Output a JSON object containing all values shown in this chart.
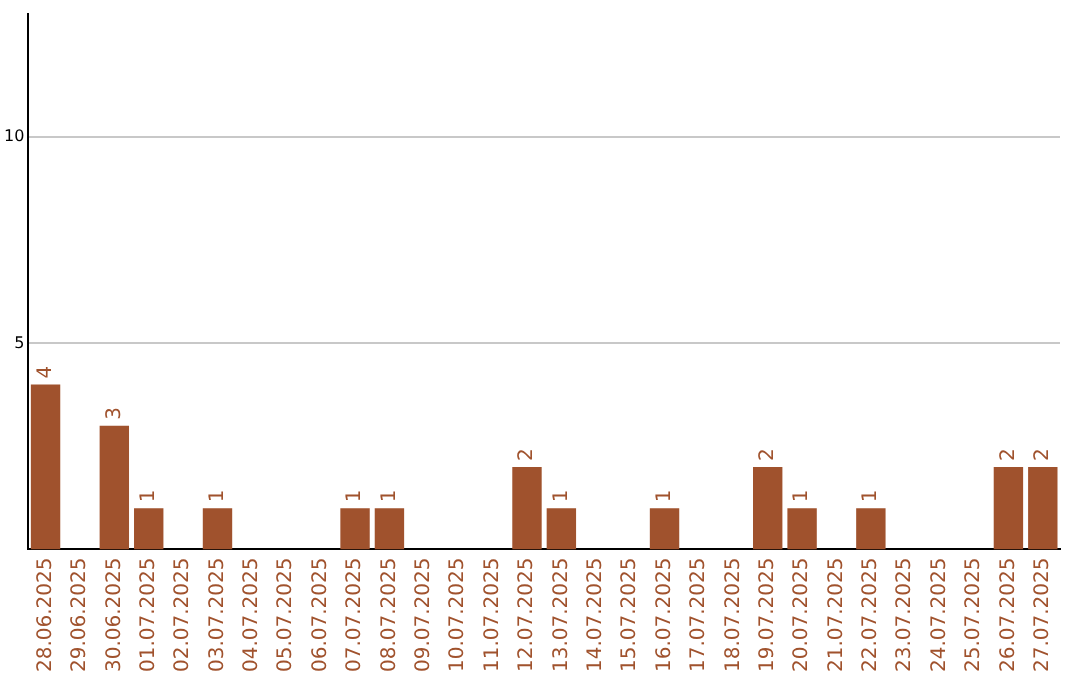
{
  "chart_data": {
    "type": "bar",
    "categories": [
      "28.06.2025",
      "29.06.2025",
      "30.06.2025",
      "01.07.2025",
      "02.07.2025",
      "03.07.2025",
      "04.07.2025",
      "05.07.2025",
      "06.07.2025",
      "07.07.2025",
      "08.07.2025",
      "09.07.2025",
      "10.07.2025",
      "11.07.2025",
      "12.07.2025",
      "13.07.2025",
      "14.07.2025",
      "15.07.2025",
      "16.07.2025",
      "17.07.2025",
      "18.07.2025",
      "19.07.2025",
      "20.07.2025",
      "21.07.2025",
      "22.07.2025",
      "23.07.2025",
      "24.07.2025",
      "25.07.2025",
      "26.07.2025",
      "27.07.2025"
    ],
    "values": [
      4,
      0,
      3,
      1,
      0,
      1,
      0,
      0,
      0,
      1,
      1,
      0,
      0,
      0,
      2,
      1,
      0,
      0,
      1,
      0,
      0,
      2,
      1,
      0,
      1,
      0,
      0,
      0,
      2,
      2
    ],
    "value_labels": [
      "4",
      null,
      "3",
      "1",
      null,
      "1",
      null,
      null,
      null,
      "1",
      "1",
      null,
      null,
      null,
      "2",
      "1",
      null,
      null,
      "1",
      null,
      null,
      "2",
      "1",
      null,
      "1",
      null,
      null,
      null,
      "2",
      "2"
    ],
    "color": "#a0522d",
    "ylim": [
      0,
      13
    ],
    "yticks": [
      5,
      10
    ],
    "grid": "y"
  }
}
